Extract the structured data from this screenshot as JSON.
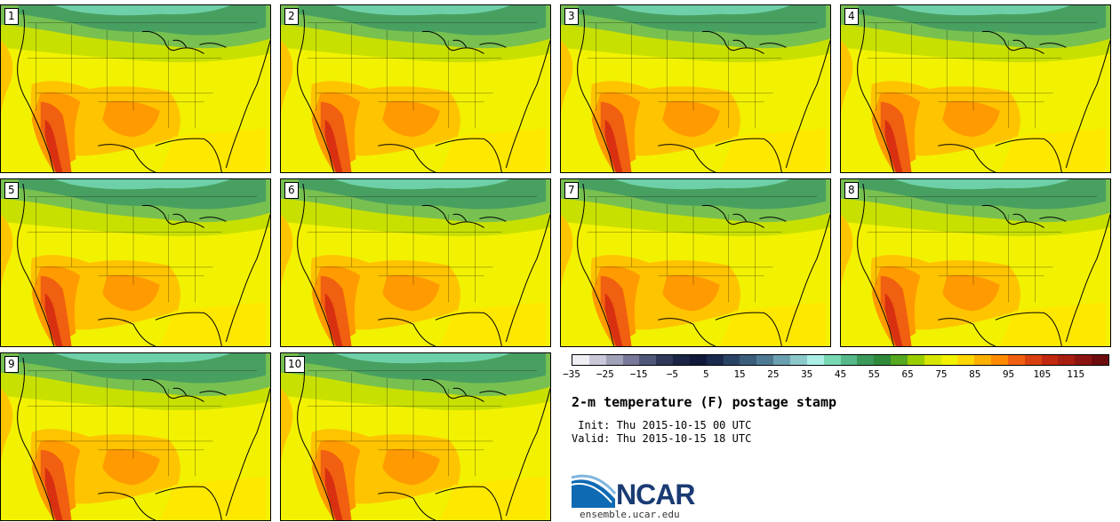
{
  "members": [
    "1",
    "2",
    "3",
    "4",
    "5",
    "6",
    "7",
    "8",
    "9",
    "10"
  ],
  "colorbar": {
    "tick_labels": [
      "−35",
      "−25",
      "−15",
      "−5",
      "5",
      "15",
      "25",
      "35",
      "45",
      "55",
      "65",
      "75",
      "85",
      "95",
      "105",
      "115"
    ],
    "colors": [
      "#eeeef4",
      "#c8c8d8",
      "#a0a0b8",
      "#787898",
      "#4f5678",
      "#30385a",
      "#1a2544",
      "#10193a",
      "#1a2a4e",
      "#2a4466",
      "#3a5e7c",
      "#4d7a92",
      "#6aa0b0",
      "#8cc8cc",
      "#aaeee4",
      "#78d8b4",
      "#56b888",
      "#3a9a5a",
      "#2e8a3a",
      "#55a820",
      "#9acd00",
      "#d6e600",
      "#f2f200",
      "#ffd700",
      "#ffb000",
      "#ff8c00",
      "#f06010",
      "#d84010",
      "#c02810",
      "#a81e10",
      "#8c1410",
      "#6c0c0c"
    ]
  },
  "title": "2-m temperature (F) postage stamp",
  "init_line": " Init: Thu 2015-10-15 00 UTC",
  "valid_line": "Valid: Thu 2015-10-15 18 UTC",
  "logo": {
    "text": "NCAR",
    "url": "ensemble.ucar.edu"
  },
  "map_colors": {
    "cold": "#48a060",
    "cool": "#78c050",
    "mild": "#c8e000",
    "warm": "#f2f200",
    "hot1": "#ffc400",
    "hot2": "#ff9a00",
    "hot3": "#f06010",
    "hot4": "#d83010",
    "ocean_north": "#6ed0a8",
    "ocean_gulf": "#ffe800"
  }
}
